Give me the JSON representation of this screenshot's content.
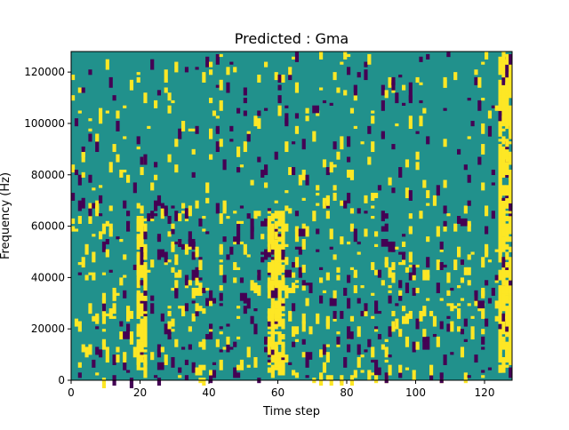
{
  "chart_data": {
    "type": "heatmap",
    "title": "Predicted : Gma",
    "xlabel": "Time step",
    "ylabel": "Frequency (Hz)",
    "xlim": [
      0,
      128
    ],
    "ylim": [
      0,
      128000
    ],
    "x_ticks": [
      "0",
      "20",
      "40",
      "60",
      "80",
      "100",
      "120"
    ],
    "x_tick_values": [
      0,
      20,
      40,
      60,
      80,
      100,
      120
    ],
    "y_ticks": [
      "0",
      "20000",
      "40000",
      "60000",
      "80000",
      "100000",
      "120000"
    ],
    "y_tick_values": [
      0,
      20000,
      40000,
      60000,
      80000,
      100000,
      120000
    ],
    "colormap": [
      "#440154",
      "#21918c",
      "#fde725"
    ],
    "background_value": 0,
    "value_levels": [
      -1,
      0,
      1
    ],
    "grid": false,
    "bright_clusters": [
      {
        "x": [
          19,
          22
        ],
        "y": [
          4000,
          64000
        ],
        "value": 1
      },
      {
        "x": [
          57,
          62
        ],
        "y": [
          4000,
          66000
        ],
        "value": 1
      },
      {
        "x": [
          124,
          128
        ],
        "y": [
          4000,
          128000
        ],
        "value": 1
      }
    ],
    "dark_cells": [
      {
        "x": 15,
        "y": 16000
      },
      {
        "x": 25,
        "y": 4000
      },
      {
        "x": 34,
        "y": 52000
      },
      {
        "x": 58,
        "y": 32000
      },
      {
        "x": 62,
        "y": 40000
      },
      {
        "x": 66,
        "y": 56000
      },
      {
        "x": 68,
        "y": 8000
      },
      {
        "x": 70,
        "y": 104000
      },
      {
        "x": 80,
        "y": 16000
      },
      {
        "x": 88,
        "y": 2000
      },
      {
        "x": 90,
        "y": 52000
      },
      {
        "x": 113,
        "y": 60000
      },
      {
        "x": 118,
        "y": 28000
      }
    ]
  }
}
